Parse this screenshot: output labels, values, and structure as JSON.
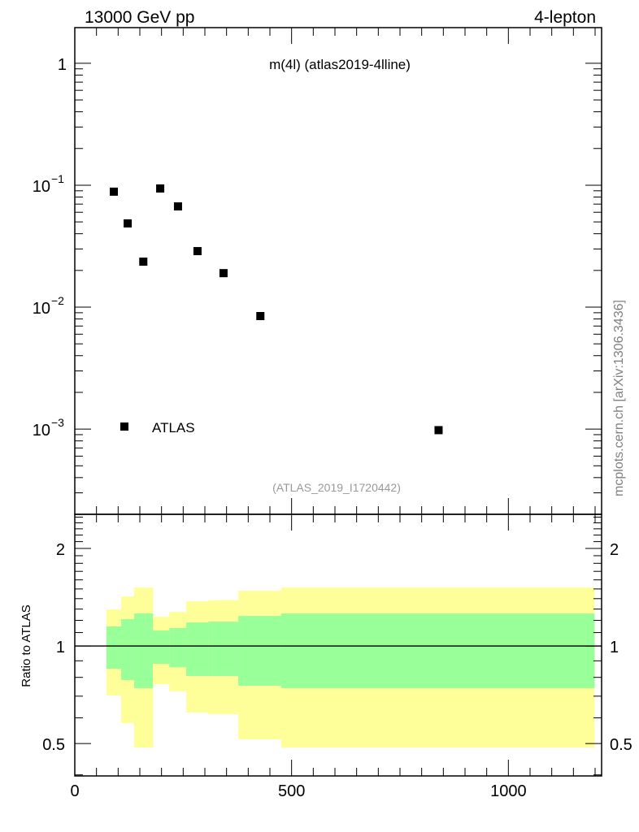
{
  "header": {
    "left": "13000 GeV pp",
    "right": "4-lepton"
  },
  "side_label": "mcplots.cern.ch [arXiv:1306.3436]",
  "colors": {
    "yellow_band": "#ffff99",
    "green_band": "#99ff99",
    "marker": "#000000"
  },
  "chart_data": [
    {
      "type": "scatter",
      "title": "m(4l) (atlas2019-4lline)",
      "annotation": "(ATLAS_2019_I1720442)",
      "yscale": "log",
      "xlim": [
        0,
        1215
      ],
      "ylim": [
        0.0002,
        1.96
      ],
      "ytick_labels": [
        {
          "value": 1,
          "base": "1",
          "exp": ""
        },
        {
          "value": 0.1,
          "base": "10",
          "exp": "−1"
        },
        {
          "value": 0.01,
          "base": "10",
          "exp": "−2"
        },
        {
          "value": 0.001,
          "base": "10",
          "exp": "−3"
        }
      ],
      "legend": {
        "entries": [
          "ATLAS"
        ],
        "placement": "bottom-left"
      },
      "series": [
        {
          "name": "ATLAS",
          "x": [
            90,
            122,
            158,
            197,
            238,
            283,
            343,
            428,
            839
          ],
          "y": [
            0.0885,
            0.0486,
            0.0236,
            0.094,
            0.067,
            0.0288,
            0.019,
            0.00845,
            0.00098
          ]
        }
      ]
    },
    {
      "type": "area",
      "ylabel": "Ratio to ATLAS",
      "yscale": "log",
      "ylim": [
        0.397,
        2.55
      ],
      "xlim": [
        0,
        1215
      ],
      "xtick_labels": [
        0,
        500,
        1000
      ],
      "ytick_labels": [
        "0.5",
        "1",
        "2"
      ],
      "ytick_values": [
        0.5,
        1,
        2
      ],
      "bin_edges": [
        73,
        107,
        137,
        180,
        218,
        257,
        308,
        377,
        476,
        1198
      ],
      "yellow_upper": [
        1.297,
        1.422,
        1.516,
        1.231,
        1.274,
        1.374,
        1.386,
        1.481,
        1.516
      ],
      "yellow_lower": [
        0.703,
        0.578,
        0.486,
        0.762,
        0.724,
        0.623,
        0.616,
        0.515,
        0.486
      ],
      "green_upper": [
        1.149,
        1.21,
        1.26,
        1.116,
        1.136,
        1.182,
        1.189,
        1.238,
        1.26
      ],
      "green_lower": [
        0.851,
        0.785,
        0.741,
        0.881,
        0.86,
        0.808,
        0.808,
        0.754,
        0.741
      ],
      "reference_line": 1
    }
  ]
}
